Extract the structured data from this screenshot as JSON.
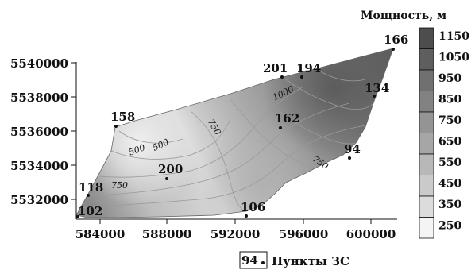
{
  "legend": {
    "title": "Мощность, м",
    "ticks": [
      "1150",
      "1050",
      "950",
      "850",
      "750",
      "650",
      "550",
      "450",
      "350",
      "250"
    ],
    "colors": [
      "#4d4d4d",
      "#5e5e5e",
      "#707070",
      "#828282",
      "#949494",
      "#a6a6a6",
      "#b8b8b8",
      "#cacaca",
      "#dcdcdc",
      "#f4f4f4"
    ]
  },
  "x_ticks": [
    "584000",
    "588000",
    "592000",
    "596000",
    "600000"
  ],
  "y_ticks": [
    "5540000",
    "5538000",
    "5536000",
    "5534000",
    "5532000"
  ],
  "points": [
    {
      "id": "166",
      "label": "166"
    },
    {
      "id": "201",
      "label": "201"
    },
    {
      "id": "194",
      "label": "194"
    },
    {
      "id": "134",
      "label": "134"
    },
    {
      "id": "158",
      "label": "158"
    },
    {
      "id": "162",
      "label": "162"
    },
    {
      "id": "94",
      "label": "94"
    },
    {
      "id": "200",
      "label": "200"
    },
    {
      "id": "118",
      "label": "118"
    },
    {
      "id": "102",
      "label": "102"
    },
    {
      "id": "106",
      "label": "106"
    }
  ],
  "contour_labels": [
    "1000",
    "750",
    "500",
    "500",
    "750",
    "750"
  ],
  "station_legend": {
    "symbol_label": "94",
    "text": "Пункты ЗС"
  }
}
